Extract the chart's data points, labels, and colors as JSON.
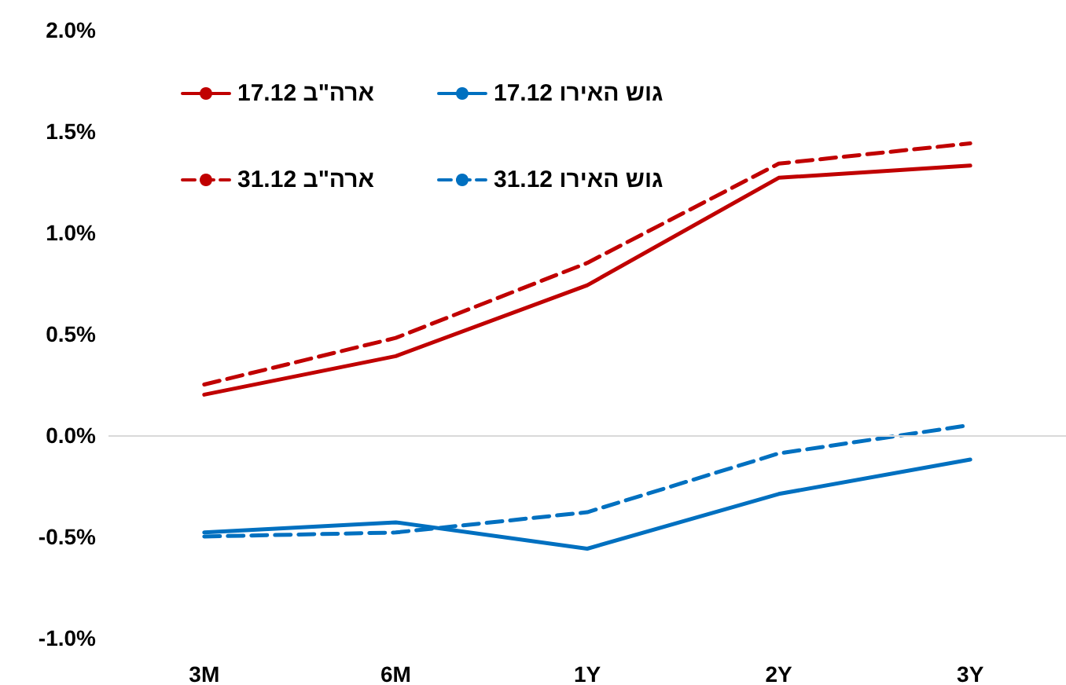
{
  "chart_data": {
    "type": "line",
    "categories": [
      "3M",
      "6M",
      "1Y",
      "2Y",
      "3Y"
    ],
    "series": [
      {
        "name": "ארה\"ב 17.12",
        "color": "#c00000",
        "line_style": "solid",
        "values": [
          0.2,
          0.39,
          0.74,
          1.27,
          1.33
        ]
      },
      {
        "name": "גוש האירו 17.12",
        "color": "#0070c0",
        "line_style": "solid",
        "values": [
          -0.48,
          -0.43,
          -0.56,
          -0.29,
          -0.12
        ]
      },
      {
        "name": "ארה\"ב 31.12",
        "color": "#c00000",
        "line_style": "dashed",
        "values": [
          0.25,
          0.48,
          0.85,
          1.34,
          1.44
        ]
      },
      {
        "name": "גוש האירו 31.12",
        "color": "#0070c0",
        "line_style": "dashed",
        "values": [
          -0.5,
          -0.48,
          -0.38,
          -0.09,
          0.05
        ]
      }
    ],
    "ylim": [
      -1,
      2
    ],
    "yticks": [
      {
        "value": -1,
        "label": "-1.0%"
      },
      {
        "value": -0.5,
        "label": "-0.5%"
      },
      {
        "value": 0,
        "label": "0.0%"
      },
      {
        "value": 0.5,
        "label": "0.5%"
      },
      {
        "value": 1,
        "label": "1.0%"
      },
      {
        "value": 1.5,
        "label": "1.5%"
      },
      {
        "value": 2,
        "label": "2.0%"
      }
    ],
    "ref_lines": [
      {
        "axis": "y",
        "value": 0,
        "color": "#d9d9d9"
      }
    ],
    "grid": false,
    "legend": "top left",
    "marker": "none"
  }
}
